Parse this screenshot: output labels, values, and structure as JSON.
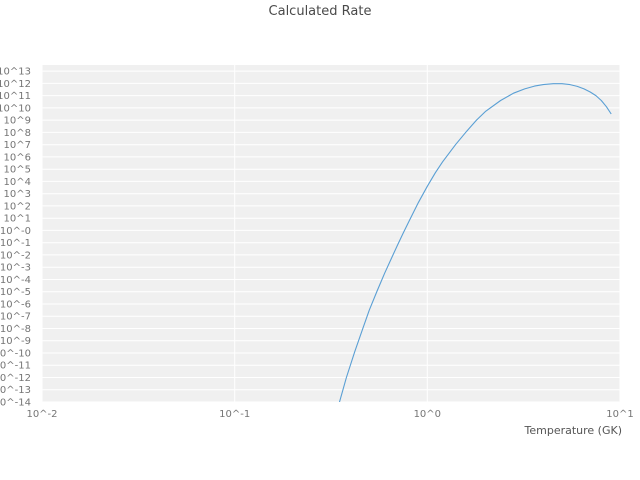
{
  "chart_data": {
    "type": "line",
    "title": "Calculated Rate",
    "xlabel": "Temperature (GK)",
    "ylabel": "",
    "x_scale": "log",
    "y_scale": "log",
    "xlim_log10": [
      -2,
      1
    ],
    "ylim_log10": [
      -14,
      13.5
    ],
    "grid": true,
    "legend": "none",
    "x_tick_labels": [
      "10^-2",
      "10^-1",
      "10^0",
      "10^1"
    ],
    "x_tick_log10": [
      -2,
      -1,
      0,
      1
    ],
    "y_tick_labels": [
      "10^13",
      "10^12",
      "10^11",
      "10^10",
      "10^9",
      "10^8",
      "10^7",
      "10^6",
      "10^5",
      "10^4",
      "10^3",
      "10^2",
      "10^1",
      "10^-0",
      "10^-1",
      "10^-2",
      "10^-3",
      "10^-4",
      "10^-5",
      "10^-6",
      "10^-7",
      "10^-8",
      "10^-9",
      "10^-10",
      "10^-11",
      "10^-12",
      "10^-13",
      "10^-14"
    ],
    "y_tick_log10": [
      13,
      12,
      11,
      10,
      9,
      8,
      7,
      6,
      5,
      4,
      3,
      2,
      1,
      0,
      -1,
      -2,
      -3,
      -4,
      -5,
      -6,
      -7,
      -8,
      -9,
      -10,
      -11,
      -12,
      -13,
      -14
    ],
    "series": [
      {
        "name": "calculated-rate",
        "x_GK": [
          0.34,
          0.35,
          0.38,
          0.42,
          0.46,
          0.5,
          0.55,
          0.6,
          0.65,
          0.7,
          0.75,
          0.8,
          0.9,
          1.0,
          1.1,
          1.2,
          1.4,
          1.6,
          1.8,
          2.0,
          2.4,
          2.8,
          3.2,
          3.6,
          4.0,
          4.5,
          5.0,
          5.5,
          6.0,
          6.5,
          7.0,
          7.5,
          8.0,
          8.5,
          9.0
        ],
        "log10_rate": [
          -15.2,
          -14.0,
          -12.0,
          -9.9,
          -8.1,
          -6.5,
          -4.9,
          -3.5,
          -2.3,
          -1.2,
          -0.2,
          0.7,
          2.3,
          3.6,
          4.7,
          5.6,
          7.0,
          8.1,
          9.0,
          9.7,
          10.6,
          11.2,
          11.55,
          11.78,
          11.9,
          11.97,
          11.97,
          11.9,
          11.75,
          11.55,
          11.3,
          11.0,
          10.6,
          10.1,
          9.5
        ]
      }
    ],
    "colors": {
      "line": "#5a9fd4",
      "plot_background": "#f0f0f0",
      "gridline": "#ffffff",
      "title_text": "#4a4a4a",
      "tick_text": "#757575",
      "axis_label_text": "#555555"
    }
  }
}
